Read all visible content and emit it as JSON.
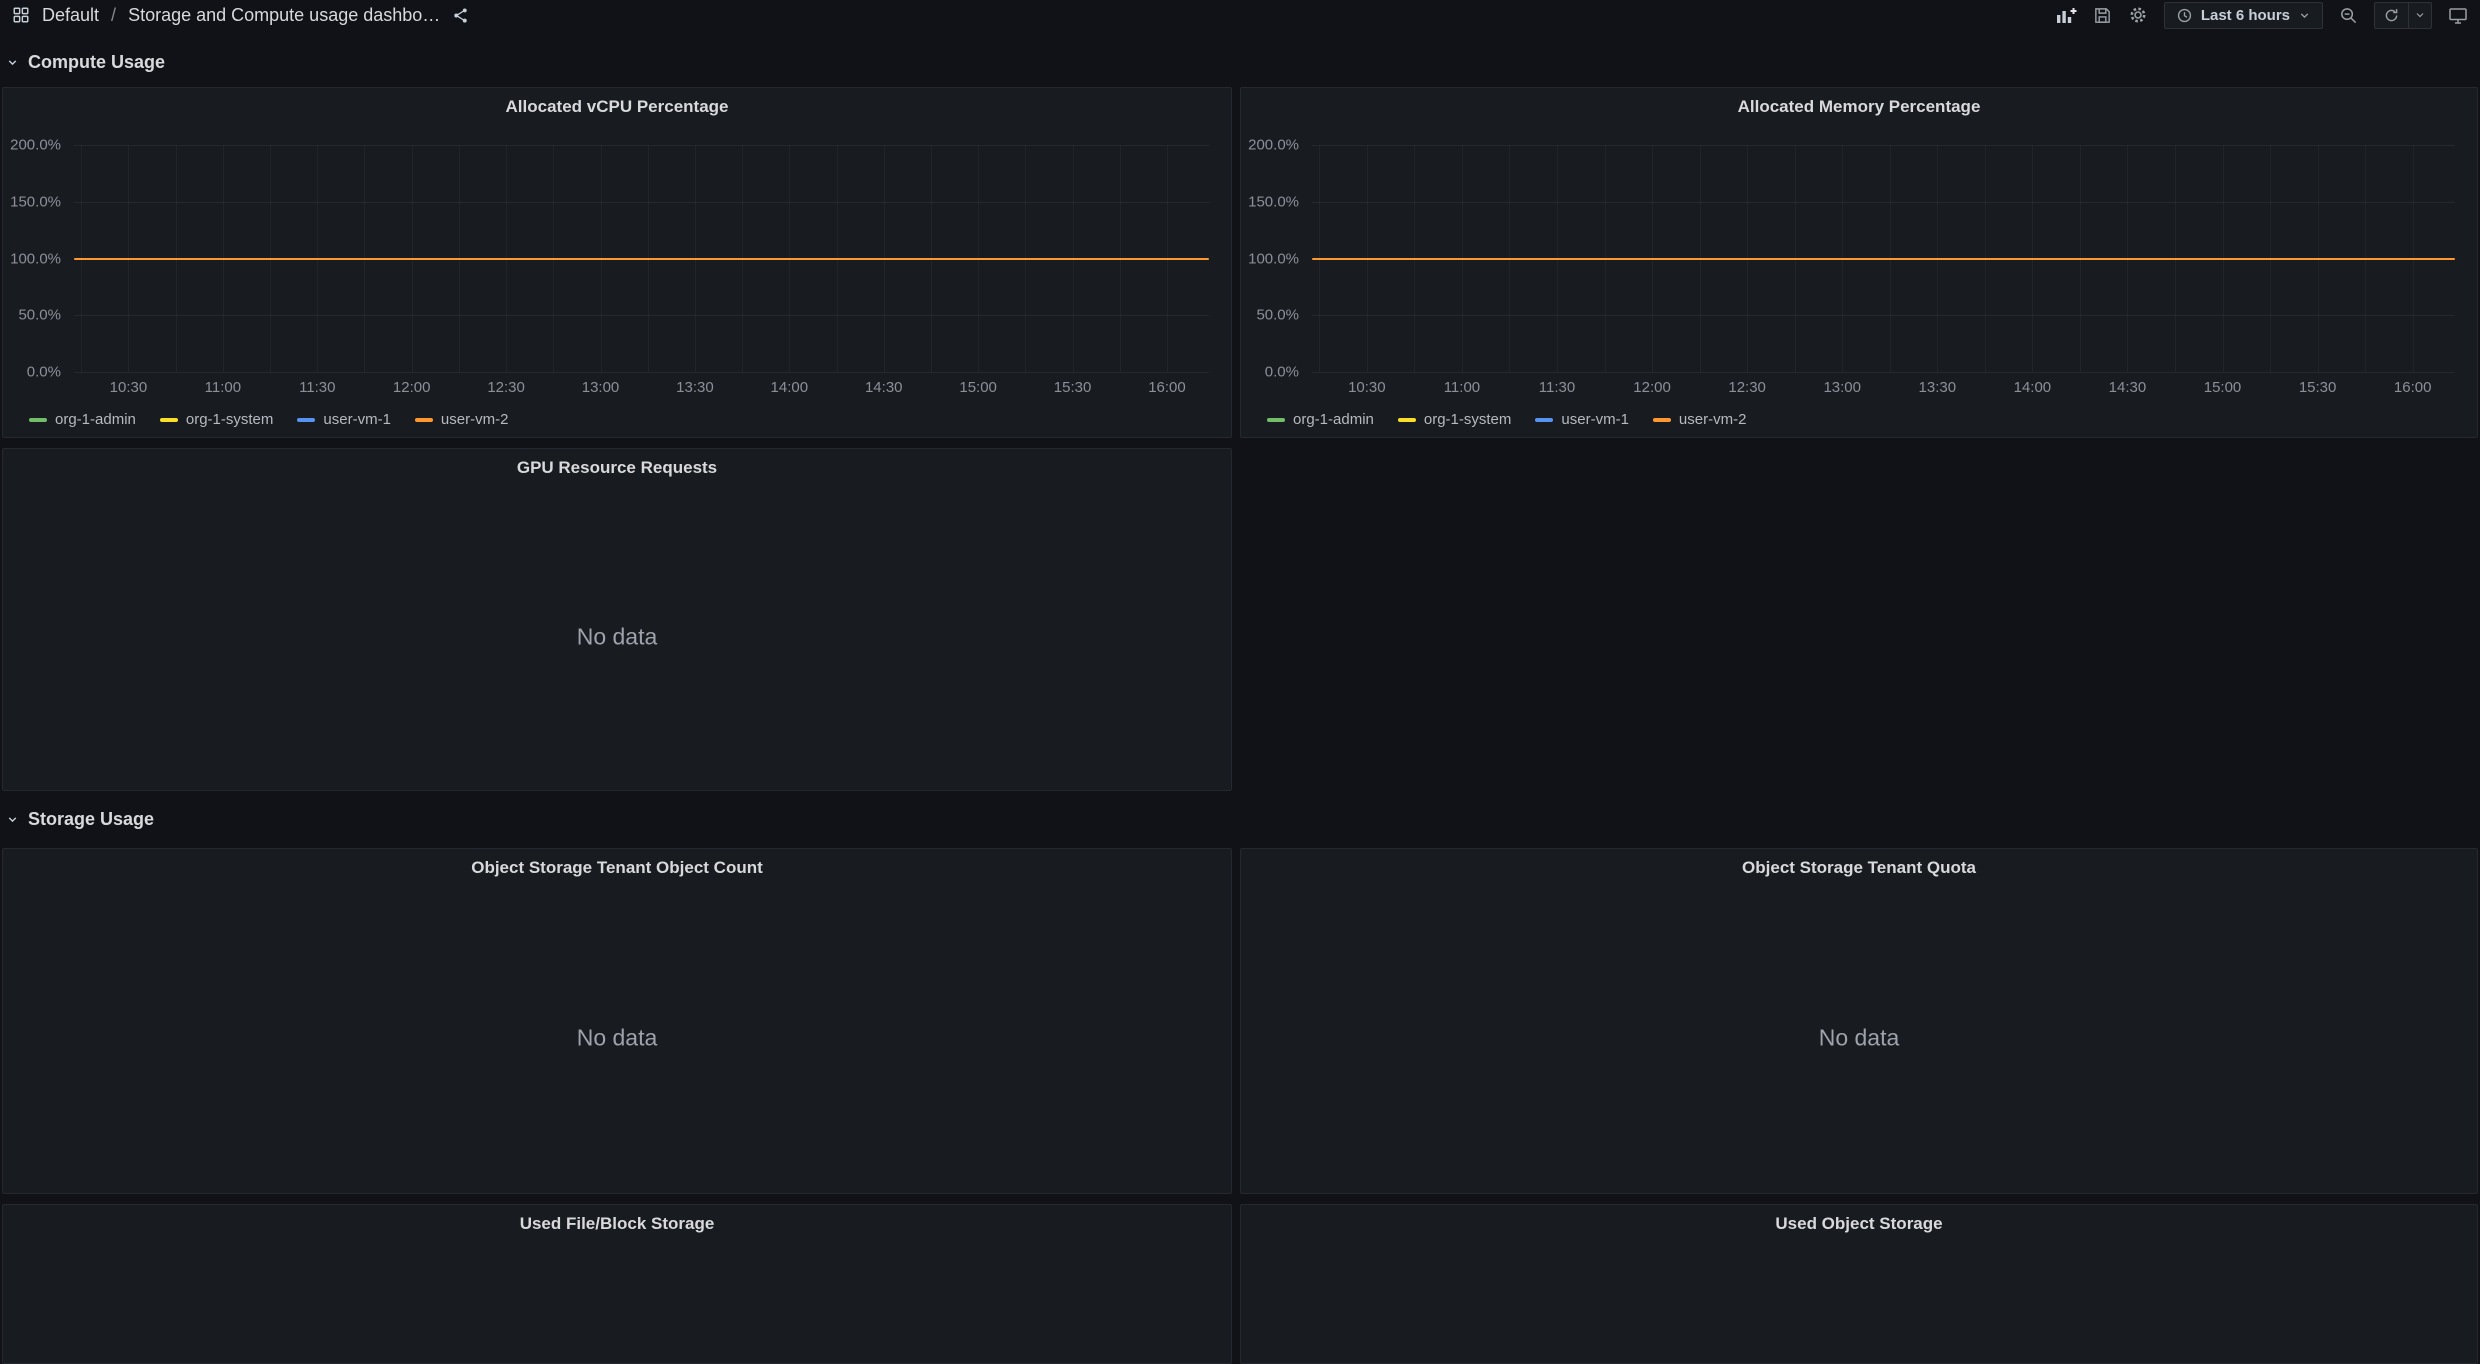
{
  "topbar": {
    "breadcrumb_root": "Default",
    "breadcrumb_separator": "/",
    "dashboard_title": "Storage and Compute usage dashbo…",
    "time_range_label": "Last 6 hours"
  },
  "rows": [
    {
      "label": "Compute Usage"
    },
    {
      "label": "Storage Usage"
    }
  ],
  "panels": {
    "vcpu": {
      "title": "Allocated vCPU Percentage"
    },
    "memory": {
      "title": "Allocated Memory Percentage"
    },
    "gpu": {
      "title": "GPU Resource Requests",
      "no_data": "No data"
    },
    "object_count": {
      "title": "Object Storage Tenant Object Count",
      "no_data": "No data"
    },
    "quota": {
      "title": "Object Storage Tenant Quota",
      "no_data": "No data"
    },
    "file_block": {
      "title": "Used File/Block Storage"
    },
    "object_storage": {
      "title": "Used Object Storage"
    }
  },
  "chart_data": [
    {
      "type": "line",
      "title": "Allocated vCPU Percentage",
      "x_ticks": [
        "10:30",
        "11:00",
        "11:30",
        "12:00",
        "12:30",
        "13:00",
        "13:30",
        "14:00",
        "14:30",
        "15:00",
        "15:30",
        "16:00"
      ],
      "y_ticks": [
        "200.0%",
        "150.0%",
        "100.0%",
        "50.0%",
        "0.0%"
      ],
      "ylim": [
        0,
        200
      ],
      "xlabel": "",
      "ylabel": "",
      "grid": true,
      "legend_position": "bottom-left",
      "series": [
        {
          "name": "org-1-admin",
          "color": "#73bf69",
          "visible_value": null
        },
        {
          "name": "org-1-system",
          "color": "#fade2a",
          "visible_value": null
        },
        {
          "name": "user-vm-1",
          "color": "#5794f2",
          "visible_value": null
        },
        {
          "name": "user-vm-2",
          "color": "#ff9830",
          "visible_value": 100
        }
      ]
    },
    {
      "type": "line",
      "title": "Allocated Memory Percentage",
      "x_ticks": [
        "10:30",
        "11:00",
        "11:30",
        "12:00",
        "12:30",
        "13:00",
        "13:30",
        "14:00",
        "14:30",
        "15:00",
        "15:30",
        "16:00"
      ],
      "y_ticks": [
        "200.0%",
        "150.0%",
        "100.0%",
        "50.0%",
        "0.0%"
      ],
      "ylim": [
        0,
        200
      ],
      "xlabel": "",
      "ylabel": "",
      "grid": true,
      "legend_position": "bottom-left",
      "series": [
        {
          "name": "org-1-admin",
          "color": "#73bf69",
          "visible_value": null
        },
        {
          "name": "org-1-system",
          "color": "#fade2a",
          "visible_value": null
        },
        {
          "name": "user-vm-1",
          "color": "#5794f2",
          "visible_value": null
        },
        {
          "name": "user-vm-2",
          "color": "#ff9830",
          "visible_value": 100
        }
      ]
    }
  ]
}
